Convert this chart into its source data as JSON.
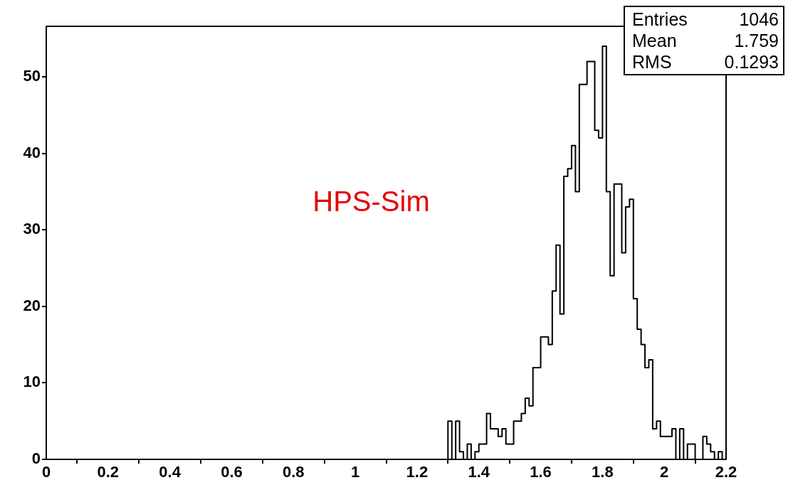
{
  "chart_data": {
    "type": "histogram",
    "color": "#000000",
    "bins": [
      1.3,
      1.3125,
      1.325,
      1.3375,
      1.35,
      1.3625,
      1.375,
      1.3875,
      1.4,
      1.4125,
      1.425,
      1.4375,
      1.45,
      1.4625,
      1.475,
      1.4875,
      1.5,
      1.5125,
      1.525,
      1.5375,
      1.55,
      1.5625,
      1.575,
      1.5875,
      1.6,
      1.6125,
      1.625,
      1.6375,
      1.65,
      1.6625,
      1.675,
      1.6875,
      1.7,
      1.7125,
      1.725,
      1.7375,
      1.75,
      1.7625,
      1.775,
      1.7875,
      1.8,
      1.8125,
      1.825,
      1.8375,
      1.85,
      1.8625,
      1.875,
      1.8875,
      1.9,
      1.9125,
      1.925,
      1.9375,
      1.95,
      1.9625,
      1.975,
      1.9875,
      2,
      2.0125,
      2.025,
      2.0375,
      2.05,
      2.0625,
      2.075,
      2.0875,
      2.1,
      2.1125,
      2.125,
      2.1375,
      2.15,
      2.1625,
      2.175,
      2.1875
    ],
    "values": [
      5,
      0,
      5,
      1,
      0,
      2,
      0,
      1,
      2,
      2,
      6,
      4,
      4,
      3,
      4,
      2,
      2,
      5,
      5,
      6,
      8,
      7,
      12,
      12,
      16,
      16,
      15,
      22,
      28,
      19,
      37,
      38,
      41,
      35,
      49,
      49,
      52,
      52,
      43,
      42,
      54,
      35,
      24,
      36,
      36,
      27,
      33,
      34,
      21,
      17,
      15,
      12,
      13,
      4,
      5,
      3,
      3,
      3,
      4,
      0,
      4,
      0,
      2,
      2,
      0,
      0,
      3,
      2,
      1,
      0,
      1
    ],
    "xlim": [
      0,
      2.2
    ],
    "xticks": [
      0,
      0.2,
      0.4,
      0.6,
      0.8,
      1,
      1.2,
      1.4,
      1.6,
      1.8,
      2,
      2.2
    ],
    "ylim": [
      0,
      56.6
    ],
    "yticks": [
      0,
      10,
      20,
      30,
      40,
      50
    ],
    "annotations": [
      "HPS-Sim",
      "Entries 1046",
      "Mean 1.759",
      "RMS 0.1293"
    ]
  }
}
